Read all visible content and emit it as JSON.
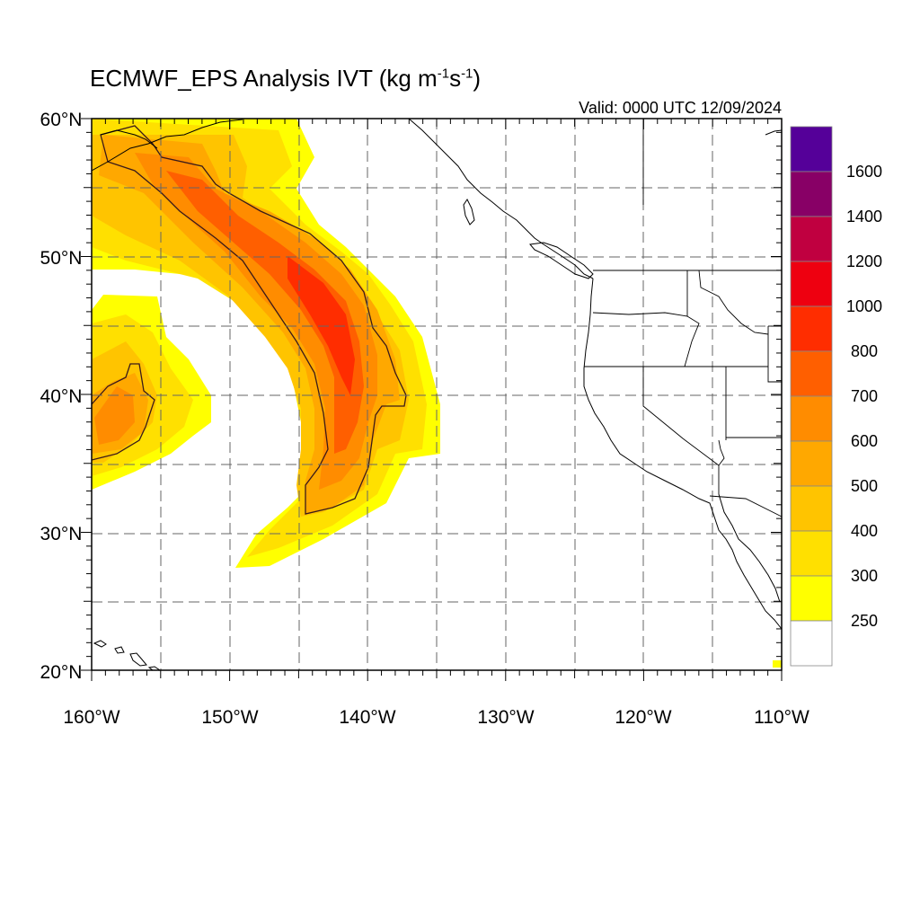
{
  "title": {
    "prefix": "ECMWF_EPS Analysis IVT (kg m",
    "sup1": "-1",
    "mid": "s",
    "sup2": "-1",
    "suffix": ")"
  },
  "valid": "Valid: 0000 UTC 12/09/2024",
  "axes": {
    "lon_range": [
      -160,
      -110
    ],
    "lat_range": [
      20,
      60
    ],
    "lon_labels": [
      "160°W",
      "150°W",
      "140°W",
      "130°W",
      "120°W",
      "110°W"
    ],
    "lat_labels": [
      "20°N",
      "30°N",
      "40°N",
      "50°N",
      "60°N"
    ],
    "grid_interval_deg": 5,
    "grid": true
  },
  "colorbar": {
    "labels": [
      "250",
      "300",
      "400",
      "500",
      "600",
      "700",
      "800",
      "1000",
      "1200",
      "1400",
      "1600"
    ],
    "colors": [
      "#ffffff",
      "#ffff00",
      "#ffe000",
      "#ffc400",
      "#ffa800",
      "#ff8c00",
      "#ff5f00",
      "#ff2d00",
      "#ee0010",
      "#c00040",
      "#880066",
      "#550099"
    ]
  },
  "map_features": [
    "coastline",
    "state-borders",
    "country-borders"
  ],
  "icon_names": [
    "contour-outline"
  ]
}
